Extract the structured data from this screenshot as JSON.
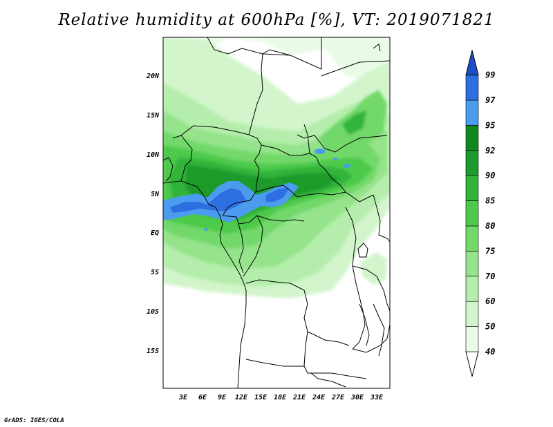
{
  "title": "Relative humidity at 600hPa [%], VT: 2019071821",
  "credit": "GrADS: IGES/COLA",
  "map": {
    "lon_range": [
      0,
      35
    ],
    "lat_range": [
      -20,
      25
    ],
    "lon_ticks": [
      "3E",
      "6E",
      "9E",
      "12E",
      "15E",
      "18E",
      "21E",
      "24E",
      "27E",
      "30E",
      "33E"
    ],
    "lat_ticks": [
      "20N",
      "15N",
      "10N",
      "5N",
      "EQ",
      "5S",
      "10S",
      "15S"
    ]
  },
  "colorbar": {
    "levels": [
      "40",
      "50",
      "60",
      "70",
      "75",
      "80",
      "85",
      "90",
      "92",
      "95",
      "97",
      "99"
    ],
    "colors": [
      "#e9fbe6",
      "#d2f5cc",
      "#b5eeac",
      "#95e38b",
      "#72d86a",
      "#4ec94c",
      "#32b33a",
      "#1f9a2c",
      "#11871f",
      "#4b9cef",
      "#2d6fe0",
      "#1a4fc7",
      "#ffffff"
    ]
  },
  "colors": {
    "humid_blue": "#2f6fe0",
    "dark_green": "#1f9a2c",
    "mid_green": "#4ec94c",
    "light_green": "#95e38b",
    "pale_green": "#d2f5cc"
  }
}
